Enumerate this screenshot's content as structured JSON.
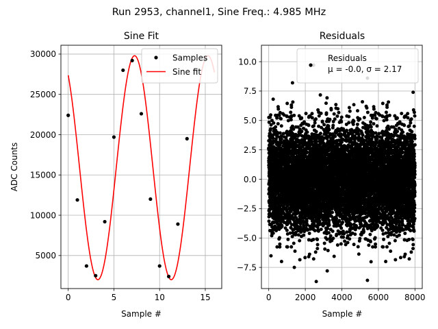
{
  "figure": {
    "suptitle": "Run 2953, channel1, Sine Freq.: 4.985 MHz"
  },
  "chart_data": [
    {
      "type": "line",
      "title": "Sine Fit",
      "xlabel": "Sample #",
      "ylabel": "ADC Counts",
      "xlim": [
        -0.8,
        16.8
      ],
      "ylim": [
        900,
        31100
      ],
      "xticks": [
        0,
        5,
        10,
        15
      ],
      "yticks": [
        5000,
        10000,
        15000,
        20000,
        25000,
        30000
      ],
      "xtick_labels": [
        "0",
        "5",
        "10",
        "15"
      ],
      "ytick_labels": [
        "5000",
        "10000",
        "15000",
        "20000",
        "25000",
        "30000"
      ],
      "grid": true,
      "legend": "upper-right",
      "colors": {
        "samples": "#000000",
        "fit": "#ff0000"
      },
      "series": [
        {
          "name": "Samples",
          "kind": "scatter",
          "x": [
            0,
            1,
            2,
            3,
            4,
            5,
            6,
            7,
            8,
            9,
            10,
            11,
            12,
            13,
            14,
            15
          ],
          "y": [
            22400,
            11900,
            3700,
            2500,
            9200,
            19700,
            28000,
            29200,
            22600,
            12000,
            3700,
            2400,
            8900,
            19500,
            28000,
            29300
          ]
        },
        {
          "name": "Sine fit",
          "kind": "line",
          "model": {
            "offset": 15900,
            "amplitude": 13900,
            "period_samples": 8.03,
            "phase_rad": 0.6,
            "x_start": 0,
            "x_end": 16
          }
        }
      ]
    },
    {
      "type": "scatter",
      "title": "Residuals",
      "xlabel": "Sample #",
      "ylabel": "",
      "xlim": [
        -400,
        8400
      ],
      "ylim": [
        -9.3,
        11.4
      ],
      "xticks": [
        0,
        2000,
        4000,
        6000,
        8000
      ],
      "yticks": [
        -7.5,
        -5.0,
        -2.5,
        0.0,
        2.5,
        5.0,
        7.5,
        10.0
      ],
      "xtick_labels": [
        "0",
        "2000",
        "4000",
        "6000",
        "8000"
      ],
      "ytick_labels": [
        "−7.5",
        "−5.0",
        "−2.5",
        "0.0",
        "2.5",
        "5.0",
        "7.5",
        "10.0"
      ],
      "grid": true,
      "legend": "upper-right",
      "colors": {
        "points": "#000000"
      },
      "series": [
        {
          "name": "Residuals",
          "stats_line": "μ = -0.0, σ = 2.17",
          "distribution": {
            "n": 8000,
            "x_start": 0,
            "x_end": 8000,
            "mean": -0.0,
            "sigma": 2.17
          },
          "notable_points": [
            {
              "x": 2450,
              "y": 9.7
            },
            {
              "x": 5400,
              "y": 8.6
            },
            {
              "x": 1300,
              "y": 8.2
            },
            {
              "x": 7900,
              "y": 7.4
            },
            {
              "x": 2600,
              "y": -8.7
            },
            {
              "x": 5400,
              "y": -8.6
            },
            {
              "x": 3200,
              "y": -7.8
            },
            {
              "x": 700,
              "y": -7.0
            },
            {
              "x": 1400,
              "y": -7.5
            },
            {
              "x": 6400,
              "y": -7.0
            }
          ]
        }
      ]
    }
  ]
}
